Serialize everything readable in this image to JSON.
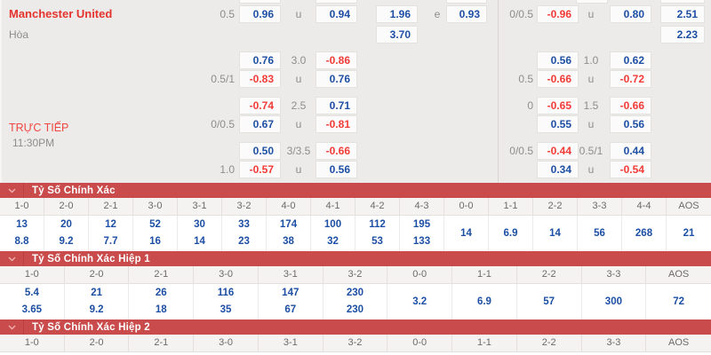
{
  "colors": {
    "odds_positive_blue": "#1d4fa4",
    "odds_negative_red": "#f23b36",
    "team_name_red": "#e4342e",
    "section_bar_red": "#c94b4b",
    "panel_background": "#edebe9",
    "muted_gray_text": "#8f8d8b"
  },
  "match": {
    "home_team": "Manchester United",
    "draw_label": "Hòa",
    "live_label": "TRỰC TIẾP",
    "kickoff_time": "11:30PM"
  },
  "odds_rows": [
    [
      {
        "col": "hcp_line",
        "text": "0.5"
      },
      {
        "col": "hcp_odds",
        "text": "0.96"
      },
      {
        "col": "ou_line",
        "text": "u"
      },
      {
        "col": "ou_odds",
        "text": "0.94"
      },
      {
        "col": "x2_odds",
        "text": "1.96"
      },
      {
        "col": "e_line",
        "text": "e"
      },
      {
        "col": "e_odds",
        "text": "0.93"
      },
      {
        "col": "hcp2_line",
        "text": "0/0.5"
      },
      {
        "col": "hcp2_odds",
        "text": "-0.96"
      },
      {
        "col": "ou2_line",
        "text": "u"
      },
      {
        "col": "ou2_odds",
        "text": "0.80"
      },
      {
        "col": "ml_odds",
        "text": "2.51"
      }
    ],
    [
      {
        "col": "x2_odds",
        "text": "3.70"
      },
      {
        "col": "ml_odds",
        "text": "2.23"
      }
    ],
    [
      {
        "col": "hcp_odds",
        "text": "0.76"
      },
      {
        "col": "ou_line",
        "text": "3.0"
      },
      {
        "col": "ou_odds",
        "text": "-0.86"
      },
      {
        "col": "hcp2_odds",
        "text": "0.56"
      },
      {
        "col": "ou2_line",
        "text": "1.0"
      },
      {
        "col": "ou2_odds",
        "text": "0.62"
      }
    ],
    [
      {
        "col": "hcp_line",
        "text": "0.5/1"
      },
      {
        "col": "hcp_odds",
        "text": "-0.83"
      },
      {
        "col": "ou_line",
        "text": "u"
      },
      {
        "col": "ou_odds",
        "text": "0.76"
      },
      {
        "col": "hcp2_line",
        "text": "0.5"
      },
      {
        "col": "hcp2_odds",
        "text": "-0.66"
      },
      {
        "col": "ou2_line",
        "text": "u"
      },
      {
        "col": "ou2_odds",
        "text": "-0.72"
      }
    ],
    [
      {
        "col": "hcp_odds",
        "text": "-0.74"
      },
      {
        "col": "ou_line",
        "text": "2.5"
      },
      {
        "col": "ou_odds",
        "text": "0.71"
      },
      {
        "col": "hcp2_line",
        "text": "0"
      },
      {
        "col": "hcp2_odds",
        "text": "-0.65"
      },
      {
        "col": "ou2_line",
        "text": "1.5"
      },
      {
        "col": "ou2_odds",
        "text": "-0.66"
      }
    ],
    [
      {
        "col": "hcp_line",
        "text": "0/0.5"
      },
      {
        "col": "hcp_odds",
        "text": "0.67"
      },
      {
        "col": "ou_line",
        "text": "u"
      },
      {
        "col": "ou_odds",
        "text": "-0.81"
      },
      {
        "col": "hcp2_odds",
        "text": "0.55"
      },
      {
        "col": "ou2_line",
        "text": "u"
      },
      {
        "col": "ou2_odds",
        "text": "0.56"
      }
    ],
    [
      {
        "col": "hcp_odds",
        "text": "0.50"
      },
      {
        "col": "ou_line",
        "text": "3/3.5"
      },
      {
        "col": "ou_odds",
        "text": "-0.66"
      },
      {
        "col": "hcp2_line",
        "text": "0/0.5"
      },
      {
        "col": "hcp2_odds",
        "text": "-0.44"
      },
      {
        "col": "ou2_line",
        "text": "0.5/1"
      },
      {
        "col": "ou2_odds",
        "text": "0.44"
      }
    ],
    [
      {
        "col": "hcp_line",
        "text": "1.0"
      },
      {
        "col": "hcp_odds",
        "text": "-0.57"
      },
      {
        "col": "ou_line",
        "text": "u"
      },
      {
        "col": "ou_odds",
        "text": "0.56"
      },
      {
        "col": "hcp2_odds",
        "text": "0.34"
      },
      {
        "col": "ou2_line",
        "text": "u"
      },
      {
        "col": "ou2_odds",
        "text": "-0.54"
      }
    ]
  ],
  "score_sections": [
    {
      "title": "Tỷ Số Chính Xác",
      "columns": [
        "1-0",
        "2-0",
        "2-1",
        "3-0",
        "3-1",
        "3-2",
        "4-0",
        "4-1",
        "4-2",
        "4-3",
        "0-0",
        "1-1",
        "2-2",
        "3-3",
        "4-4",
        "AOS"
      ],
      "cells": [
        {
          "score": "1-0",
          "values": [
            "13",
            "8.8"
          ]
        },
        {
          "score": "2-0",
          "values": [
            "20",
            "9.2"
          ]
        },
        {
          "score": "2-1",
          "values": [
            "12",
            "7.7"
          ]
        },
        {
          "score": "3-0",
          "values": [
            "52",
            "16"
          ]
        },
        {
          "score": "3-1",
          "values": [
            "30",
            "14"
          ]
        },
        {
          "score": "3-2",
          "values": [
            "33",
            "23"
          ]
        },
        {
          "score": "4-0",
          "values": [
            "174",
            "38"
          ]
        },
        {
          "score": "4-1",
          "values": [
            "100",
            "32"
          ]
        },
        {
          "score": "4-2",
          "values": [
            "112",
            "53"
          ]
        },
        {
          "score": "4-3",
          "values": [
            "195",
            "133"
          ]
        },
        {
          "score": "0-0",
          "values": [
            "14"
          ]
        },
        {
          "score": "1-1",
          "values": [
            "6.9"
          ]
        },
        {
          "score": "2-2",
          "values": [
            "14"
          ]
        },
        {
          "score": "3-3",
          "values": [
            "56"
          ]
        },
        {
          "score": "4-4",
          "values": [
            "268"
          ]
        },
        {
          "score": "AOS",
          "values": [
            "21"
          ]
        }
      ]
    },
    {
      "title": "Tỷ Số Chính Xác Hiệp 1",
      "columns": [
        "1-0",
        "2-0",
        "2-1",
        "3-0",
        "3-1",
        "3-2",
        "0-0",
        "1-1",
        "2-2",
        "3-3",
        "AOS"
      ],
      "cells": [
        {
          "score": "1-0",
          "values": [
            "5.4",
            "3.65"
          ]
        },
        {
          "score": "2-0",
          "values": [
            "21",
            "9.2"
          ]
        },
        {
          "score": "2-1",
          "values": [
            "26",
            "18"
          ]
        },
        {
          "score": "3-0",
          "values": [
            "116",
            "35"
          ]
        },
        {
          "score": "3-1",
          "values": [
            "147",
            "67"
          ]
        },
        {
          "score": "3-2",
          "values": [
            "230",
            "230"
          ]
        },
        {
          "score": "0-0",
          "values": [
            "3.2"
          ]
        },
        {
          "score": "1-1",
          "values": [
            "6.9"
          ]
        },
        {
          "score": "2-2",
          "values": [
            "57"
          ]
        },
        {
          "score": "3-3",
          "values": [
            "300"
          ]
        },
        {
          "score": "AOS",
          "values": [
            "72"
          ]
        }
      ]
    },
    {
      "title": "Tỷ Số Chính Xác Hiệp 2",
      "columns": [
        "1-0",
        "2-0",
        "2-1",
        "3-0",
        "3-1",
        "3-2",
        "0-0",
        "1-1",
        "2-2",
        "3-3",
        "AOS"
      ],
      "cells": []
    }
  ]
}
